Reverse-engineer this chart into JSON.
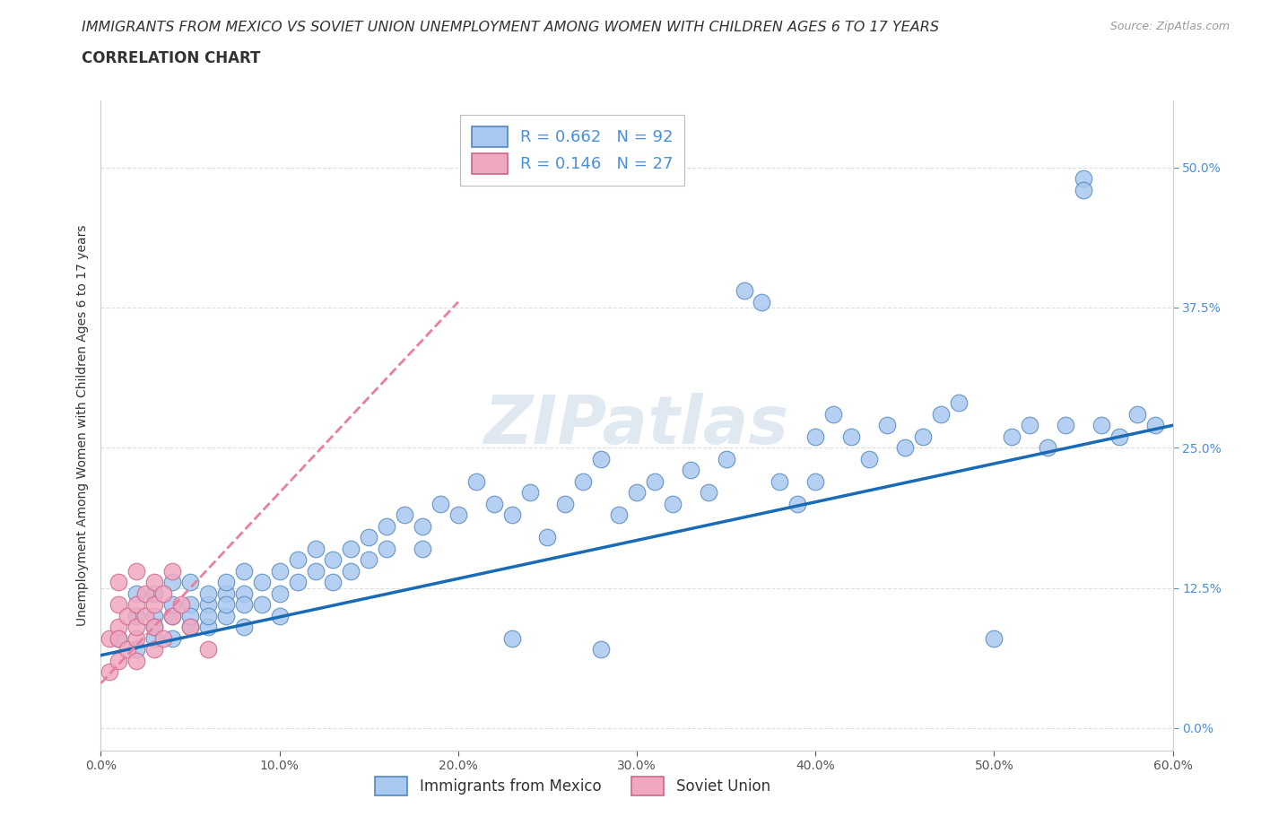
{
  "title1": "IMMIGRANTS FROM MEXICO VS SOVIET UNION UNEMPLOYMENT AMONG WOMEN WITH CHILDREN AGES 6 TO 17 YEARS",
  "title2": "CORRELATION CHART",
  "source": "Source: ZipAtlas.com",
  "ylabel": "Unemployment Among Women with Children Ages 6 to 17 years",
  "xlim": [
    0.0,
    0.6
  ],
  "ylim": [
    -0.02,
    0.56
  ],
  "xticks": [
    0.0,
    0.1,
    0.2,
    0.3,
    0.4,
    0.5,
    0.6
  ],
  "yticks": [
    0.0,
    0.125,
    0.25,
    0.375,
    0.5
  ],
  "xticklabels": [
    "0.0%",
    "10.0%",
    "20.0%",
    "30.0%",
    "40.0%",
    "50.0%",
    "60.0%"
  ],
  "yticklabels": [
    "0.0%",
    "12.5%",
    "25.0%",
    "37.5%",
    "50.0%"
  ],
  "mexico_color": "#a8c8f0",
  "soviet_color": "#f0a8c0",
  "mexico_edge": "#5588bb",
  "soviet_edge": "#cc6688",
  "trend_blue": "#1a6bb5",
  "trend_pink": "#e87fa0",
  "R_mexico": 0.662,
  "N_mexico": 92,
  "R_soviet": 0.146,
  "N_soviet": 27,
  "watermark": "ZIPatlas",
  "watermark_color": "#c8d8e8",
  "background_color": "#ffffff",
  "grid_color": "#dddddd",
  "mexico_x": [
    0.01,
    0.02,
    0.02,
    0.02,
    0.03,
    0.03,
    0.03,
    0.03,
    0.04,
    0.04,
    0.04,
    0.04,
    0.05,
    0.05,
    0.05,
    0.05,
    0.06,
    0.06,
    0.06,
    0.06,
    0.07,
    0.07,
    0.07,
    0.07,
    0.08,
    0.08,
    0.08,
    0.08,
    0.09,
    0.09,
    0.1,
    0.1,
    0.1,
    0.11,
    0.11,
    0.12,
    0.12,
    0.13,
    0.13,
    0.14,
    0.14,
    0.15,
    0.15,
    0.16,
    0.16,
    0.17,
    0.18,
    0.18,
    0.19,
    0.2,
    0.21,
    0.22,
    0.23,
    0.24,
    0.25,
    0.26,
    0.27,
    0.28,
    0.29,
    0.3,
    0.31,
    0.32,
    0.33,
    0.34,
    0.35,
    0.36,
    0.37,
    0.38,
    0.39,
    0.4,
    0.4,
    0.41,
    0.42,
    0.43,
    0.44,
    0.45,
    0.46,
    0.47,
    0.48,
    0.5,
    0.51,
    0.52,
    0.53,
    0.54,
    0.55,
    0.55,
    0.56,
    0.57,
    0.58,
    0.59,
    0.23,
    0.28
  ],
  "mexico_y": [
    0.08,
    0.07,
    0.1,
    0.12,
    0.08,
    0.1,
    0.12,
    0.09,
    0.1,
    0.11,
    0.13,
    0.08,
    0.09,
    0.11,
    0.13,
    0.1,
    0.11,
    0.09,
    0.12,
    0.1,
    0.12,
    0.13,
    0.1,
    0.11,
    0.12,
    0.14,
    0.11,
    0.09,
    0.13,
    0.11,
    0.12,
    0.14,
    0.1,
    0.13,
    0.15,
    0.14,
    0.16,
    0.15,
    0.13,
    0.16,
    0.14,
    0.17,
    0.15,
    0.18,
    0.16,
    0.19,
    0.18,
    0.16,
    0.2,
    0.19,
    0.22,
    0.2,
    0.19,
    0.21,
    0.17,
    0.2,
    0.22,
    0.24,
    0.19,
    0.21,
    0.22,
    0.2,
    0.23,
    0.21,
    0.24,
    0.39,
    0.38,
    0.22,
    0.2,
    0.26,
    0.22,
    0.28,
    0.26,
    0.24,
    0.27,
    0.25,
    0.26,
    0.28,
    0.29,
    0.08,
    0.26,
    0.27,
    0.25,
    0.27,
    0.49,
    0.48,
    0.27,
    0.26,
    0.28,
    0.27,
    0.08,
    0.07
  ],
  "soviet_x": [
    0.005,
    0.005,
    0.01,
    0.01,
    0.01,
    0.01,
    0.01,
    0.015,
    0.015,
    0.02,
    0.02,
    0.02,
    0.02,
    0.02,
    0.025,
    0.025,
    0.03,
    0.03,
    0.03,
    0.03,
    0.035,
    0.035,
    0.04,
    0.04,
    0.045,
    0.05,
    0.06
  ],
  "soviet_y": [
    0.05,
    0.08,
    0.06,
    0.09,
    0.11,
    0.13,
    0.08,
    0.07,
    0.1,
    0.08,
    0.11,
    0.14,
    0.06,
    0.09,
    0.12,
    0.1,
    0.07,
    0.11,
    0.13,
    0.09,
    0.08,
    0.12,
    0.1,
    0.14,
    0.11,
    0.09,
    0.07
  ],
  "mexico_trend_x": [
    0.0,
    0.6
  ],
  "mexico_trend_y": [
    0.065,
    0.27
  ],
  "soviet_trend_x": [
    0.0,
    0.2
  ],
  "soviet_trend_y": [
    0.04,
    0.38
  ]
}
